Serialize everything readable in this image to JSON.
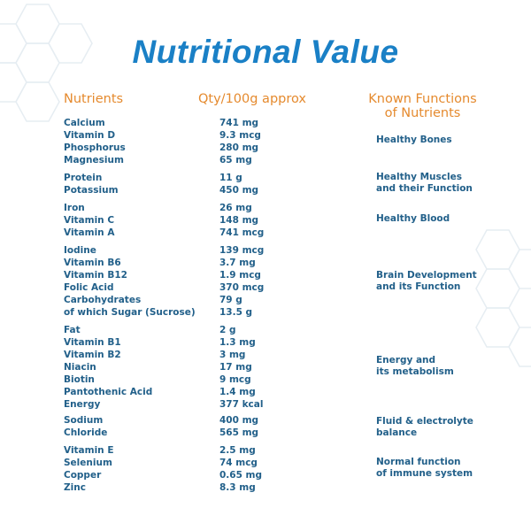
{
  "title": "Nutritional Value",
  "headers": {
    "nutrients": "Nutrients",
    "qty": "Qty/100g approx",
    "functions_line1": "Known Functions",
    "functions_line2": "of Nutrients"
  },
  "colors": {
    "title": "#1a80c6",
    "header": "#e58a2e",
    "text": "#22608a"
  },
  "groups": [
    {
      "rows": [
        [
          "Calcium",
          "741 mg"
        ],
        [
          "Vitamin D",
          "9.3 mcg"
        ],
        [
          "Phosphorus",
          "280 mg"
        ],
        [
          "Magnesium",
          "65 mg"
        ]
      ],
      "function": [
        "Healthy Bones"
      ]
    },
    {
      "rows": [
        [
          "Protein",
          "11 g"
        ],
        [
          "Potassium",
          "450 mg"
        ]
      ],
      "function": [
        "Healthy Muscles",
        "and their Function"
      ]
    },
    {
      "rows": [
        [
          "Iron",
          "26 mg"
        ],
        [
          "Vitamin C",
          "148 mg"
        ],
        [
          "Vitamin A",
          "741 mcg"
        ]
      ],
      "function": [
        "Healthy Blood"
      ]
    },
    {
      "rows": [
        [
          "Iodine",
          "139 mcg"
        ],
        [
          "Vitamin B6",
          "3.7 mg"
        ],
        [
          "Vitamin B12",
          "1.9 mcg"
        ],
        [
          "Folic Acid",
          "370 mcg"
        ],
        [
          "Carbohydrates",
          "79 g"
        ],
        [
          "of which Sugar (Sucrose)",
          "13.5 g"
        ]
      ],
      "function": [
        "Brain Development",
        "and its Function"
      ]
    },
    {
      "rows": [
        [
          "Fat",
          "2 g"
        ],
        [
          "Vitamin B1",
          "1.3 mg"
        ],
        [
          "Vitamin B2",
          "3 mg"
        ],
        [
          "Niacin",
          "17 mg"
        ],
        [
          "Biotin",
          "9 mcg"
        ],
        [
          "Pantothenic Acid",
          "1.4 mg"
        ],
        [
          "Energy",
          "377 kcal"
        ]
      ],
      "function": [
        "Energy and",
        "its metabolism"
      ]
    },
    {
      "rows": [
        [
          "Sodium",
          "400 mg"
        ],
        [
          "Chloride",
          "565 mg"
        ]
      ],
      "function": [
        "Fluid & electrolyte",
        "balance"
      ]
    },
    {
      "rows": [
        [
          "Vitamin E",
          "2.5 mg"
        ],
        [
          "Selenium",
          "74 mcg"
        ],
        [
          "Copper",
          "0.65 mg"
        ],
        [
          "Zinc",
          "8.3 mg"
        ]
      ],
      "function": [
        "Normal function",
        "of immune system"
      ]
    }
  ]
}
